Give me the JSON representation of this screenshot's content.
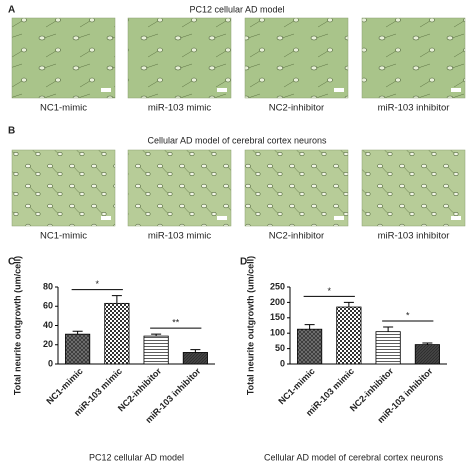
{
  "panel_a": {
    "label": "A",
    "title": "PC12 cellular AD model",
    "captions": [
      "NC1-mimic",
      "miR-103 mimic",
      "NC2-inhibitor",
      "miR-103 inhibitor"
    ]
  },
  "panel_b": {
    "label": "B",
    "title": "Cellular AD model of cerebral cortex neurons",
    "captions": [
      "NC1-mimic",
      "miR-103 mimic",
      "NC2-inhibitor",
      "miR-103 inhibitor"
    ]
  },
  "chart_data": [
    {
      "type": "bar",
      "panel_label": "C",
      "ylabel": "Total neurite outgrowth (um/cell)",
      "xlabel": "PC12 cellular AD model",
      "categories": [
        "NC1-mimic",
        "miR-103 mimic",
        "NC2-inhibitor",
        "miR-103 inhibitor"
      ],
      "values": [
        31,
        63,
        29,
        12
      ],
      "errors": [
        3,
        8,
        2,
        3
      ],
      "ylim": [
        0,
        80
      ],
      "yticks": [
        0,
        20,
        40,
        60,
        80
      ],
      "annotations": [
        "*",
        "**"
      ]
    },
    {
      "type": "bar",
      "panel_label": "D",
      "ylabel": "Total neurite outgrowth (um/cell)",
      "xlabel": "Cellular AD model of cerebral cortex neurons",
      "categories": [
        "NC1-mimic",
        "miR-103 mimic",
        "NC2-inhibitor",
        "miR-103 inhibitor"
      ],
      "values": [
        113,
        185,
        105,
        63
      ],
      "errors": [
        15,
        15,
        15,
        5
      ],
      "ylim": [
        0,
        250
      ],
      "yticks": [
        0,
        50,
        100,
        150,
        200,
        250
      ],
      "annotations": [
        "*",
        "*"
      ]
    }
  ]
}
